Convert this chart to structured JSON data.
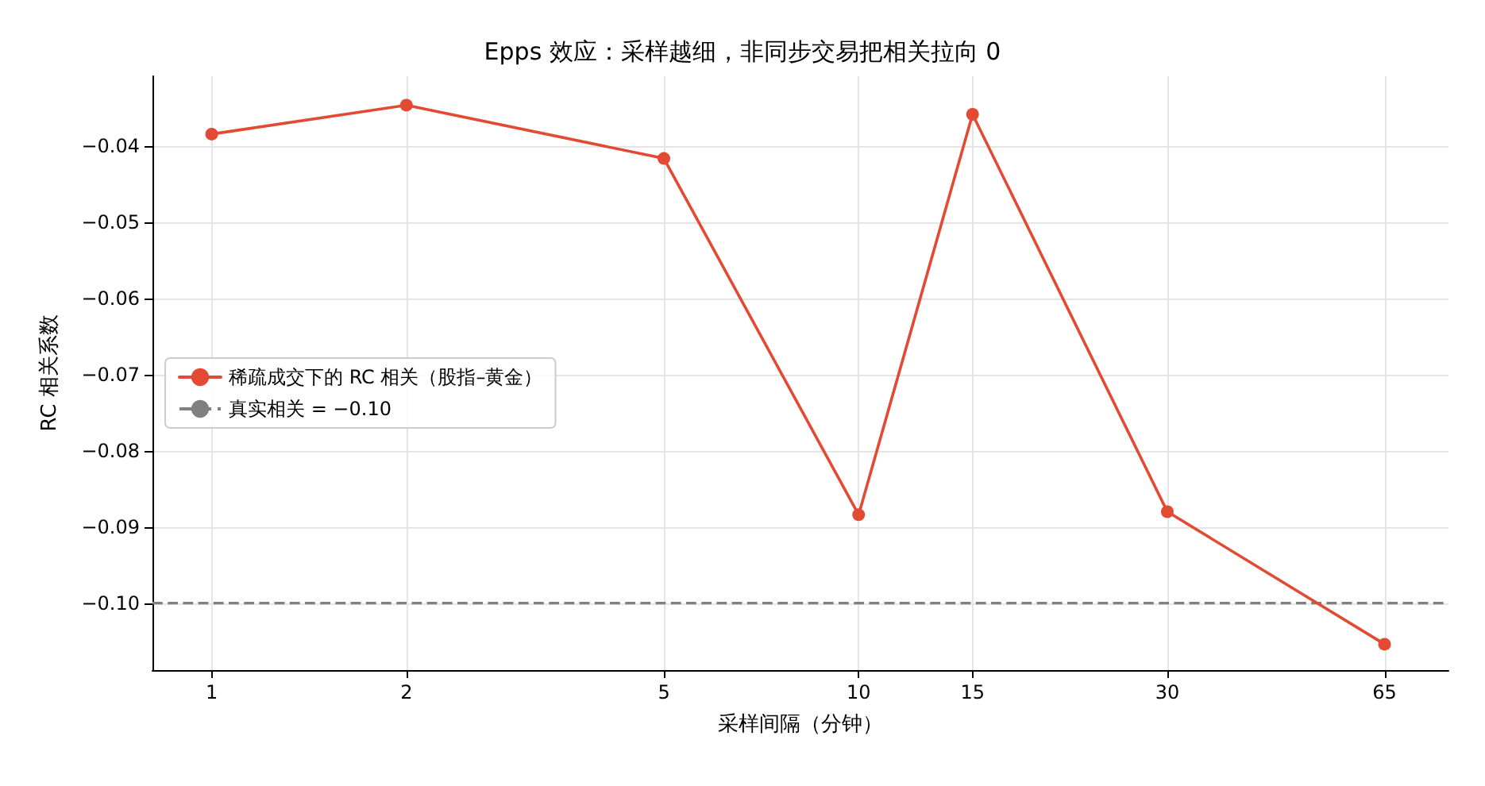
{
  "chart_data": {
    "type": "line",
    "title": "Epps 效应：采样越细，非同步交易把相关拉向 0",
    "xlabel": "采样间隔（分钟）",
    "ylabel": "RC 相关系数",
    "log": "x",
    "x": [
      1,
      2,
      5,
      10,
      15,
      30,
      65
    ],
    "series": [
      {
        "name": "稀疏成交下的 RC 相关（股指–黄金）",
        "color": "#e24a33",
        "values": [
          -0.0384,
          -0.0346,
          -0.0416,
          -0.0884,
          -0.0358,
          -0.088,
          -0.1054
        ]
      }
    ],
    "ref_lines": [
      {
        "axis": "y",
        "value": -0.1,
        "label": "真实相关 = −0.10",
        "color": "#808080",
        "line_style": "dashed"
      }
    ],
    "xlim": [
      0.81,
      81.6
    ],
    "ylim": [
      -0.1088,
      -0.0308
    ],
    "xticks": [
      1,
      2,
      5,
      10,
      15,
      30,
      65
    ],
    "yticks": [
      {
        "value": -0.1,
        "label": "−0.10"
      },
      {
        "value": -0.09,
        "label": "−0.09"
      },
      {
        "value": -0.08,
        "label": "−0.08"
      },
      {
        "value": -0.07,
        "label": "−0.07"
      },
      {
        "value": -0.06,
        "label": "−0.06"
      },
      {
        "value": -0.05,
        "label": "−0.05"
      },
      {
        "value": -0.04,
        "label": "−0.04"
      }
    ],
    "grid": true,
    "legend": "left",
    "marker": "circle",
    "line_style": "solid"
  }
}
